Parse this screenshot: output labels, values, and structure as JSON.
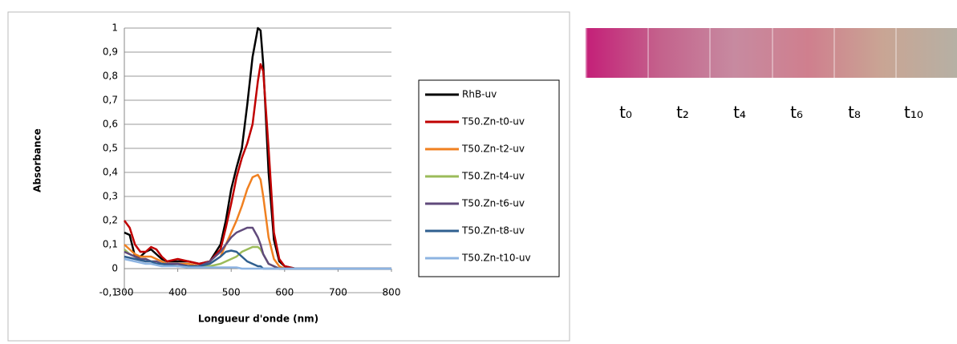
{
  "chart_data": {
    "type": "line",
    "x_label": "Longueur d'onde (nm)",
    "y_label": "Absorbance",
    "x": [
      300,
      310,
      320,
      330,
      340,
      350,
      360,
      370,
      380,
      400,
      420,
      440,
      460,
      480,
      490,
      500,
      510,
      520,
      530,
      540,
      550,
      555,
      560,
      570,
      580,
      590,
      600,
      620,
      650,
      700,
      750,
      800
    ],
    "series": [
      {
        "name": "RhB-uv",
        "color": "#000000",
        "values": [
          0.15,
          0.14,
          0.05,
          0.05,
          0.07,
          0.08,
          0.06,
          0.04,
          0.03,
          0.03,
          0.03,
          0.02,
          0.03,
          0.1,
          0.2,
          0.33,
          0.42,
          0.5,
          0.68,
          0.88,
          1.0,
          0.99,
          0.85,
          0.4,
          0.12,
          0.03,
          0.01,
          0,
          0,
          0,
          0,
          0
        ]
      },
      {
        "name": "T50.Zn-t0-uv",
        "color": "#c00000",
        "values": [
          0.2,
          0.17,
          0.1,
          0.07,
          0.07,
          0.09,
          0.08,
          0.05,
          0.03,
          0.04,
          0.03,
          0.02,
          0.03,
          0.08,
          0.17,
          0.27,
          0.38,
          0.46,
          0.52,
          0.6,
          0.78,
          0.85,
          0.82,
          0.5,
          0.15,
          0.04,
          0.01,
          0,
          0,
          0,
          0,
          0
        ]
      },
      {
        "name": "T50.Zn-t2-uv",
        "color": "#f08020",
        "values": [
          0.1,
          0.08,
          0.06,
          0.05,
          0.05,
          0.05,
          0.04,
          0.03,
          0.02,
          0.02,
          0.02,
          0.01,
          0.02,
          0.05,
          0.1,
          0.15,
          0.2,
          0.26,
          0.33,
          0.38,
          0.39,
          0.37,
          0.3,
          0.13,
          0.04,
          0.01,
          0,
          0,
          0,
          0,
          0,
          0
        ]
      },
      {
        "name": "T50.Zn-t4-uv",
        "color": "#9bbb59",
        "values": [
          0.08,
          0.06,
          0.05,
          0.04,
          0.04,
          0.03,
          0.03,
          0.02,
          0.02,
          0.01,
          0.01,
          0.01,
          0.01,
          0.02,
          0.03,
          0.04,
          0.05,
          0.07,
          0.08,
          0.09,
          0.09,
          0.08,
          0.06,
          0.02,
          0.01,
          0,
          0,
          0,
          0,
          0,
          0,
          0
        ]
      },
      {
        "name": "T50.Zn-t6-uv",
        "color": "#604a7b",
        "values": [
          0.07,
          0.06,
          0.05,
          0.04,
          0.04,
          0.03,
          0.03,
          0.02,
          0.02,
          0.02,
          0.01,
          0.01,
          0.03,
          0.07,
          0.1,
          0.13,
          0.15,
          0.16,
          0.17,
          0.17,
          0.13,
          0.1,
          0.06,
          0.02,
          0.01,
          0,
          0,
          0,
          0,
          0,
          0,
          0
        ]
      },
      {
        "name": "T50.Zn-t8-uv",
        "color": "#2f5f8f",
        "values": [
          0.05,
          0.045,
          0.04,
          0.035,
          0.03,
          0.03,
          0.02,
          0.02,
          0.015,
          0.01,
          0.01,
          0.01,
          0.02,
          0.05,
          0.07,
          0.075,
          0.07,
          0.05,
          0.03,
          0.02,
          0.01,
          0.01,
          0,
          0,
          0,
          0,
          0,
          0,
          0,
          0,
          0,
          0
        ]
      },
      {
        "name": "T50.Zn-t10-uv",
        "color": "#8db4e2",
        "values": [
          0.04,
          0.035,
          0.03,
          0.025,
          0.02,
          0.02,
          0.015,
          0.01,
          0.01,
          0.01,
          0.005,
          0.005,
          0.005,
          0.005,
          0.005,
          0.005,
          0.005,
          0,
          0,
          0,
          0,
          0,
          0,
          0,
          0,
          0,
          0,
          0,
          0,
          0,
          0,
          0
        ]
      }
    ],
    "xlim": [
      300,
      800
    ],
    "xticks": [
      300,
      400,
      500,
      600,
      700,
      800
    ],
    "ylim": [
      -0.1,
      1
    ],
    "yticks": [
      {
        "value": -0.1,
        "label": "-0,1"
      },
      0,
      {
        "value": 0.1,
        "label": "0,1"
      },
      {
        "value": 0.2,
        "label": "0,2"
      },
      {
        "value": 0.3,
        "label": "0,3"
      },
      {
        "value": 0.4,
        "label": "0,4"
      },
      {
        "value": 0.5,
        "label": "0,5"
      },
      {
        "value": 0.6,
        "label": "0,6"
      },
      {
        "value": 0.7,
        "label": "0,7"
      },
      {
        "value": 0.8,
        "label": "0,8"
      },
      {
        "value": 0.9,
        "label": "0,9"
      },
      1
    ],
    "grid": true,
    "legend": "right"
  },
  "photo": {
    "labels": [
      "t₀",
      "t₂",
      "t₄",
      "t₆",
      "t₈",
      "t₁₀"
    ]
  }
}
